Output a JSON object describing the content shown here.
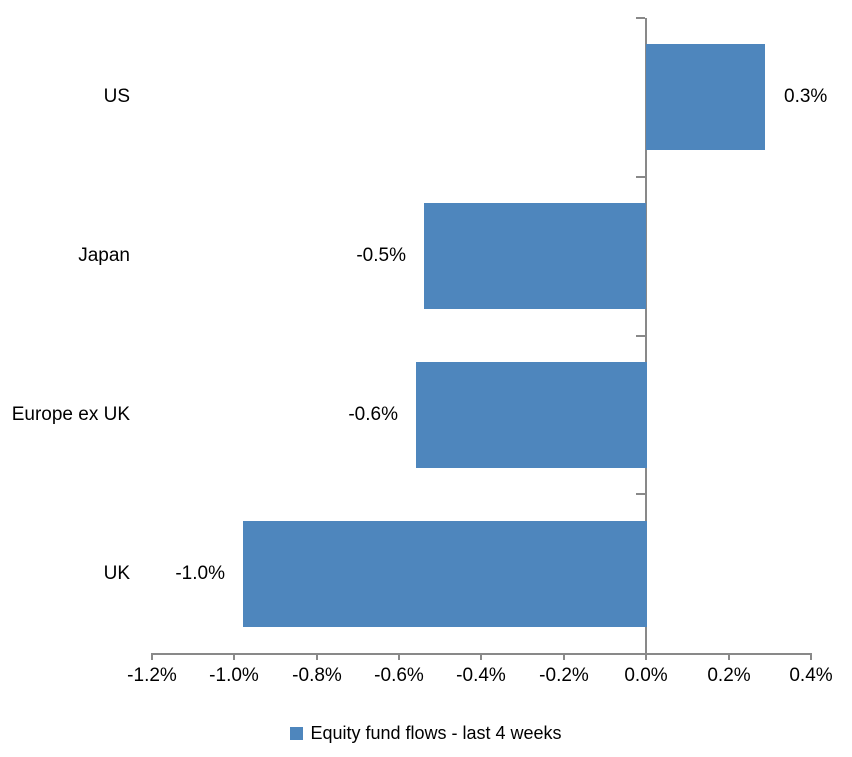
{
  "chart_data": {
    "type": "bar",
    "orientation": "horizontal",
    "categories": [
      "US",
      "Japan",
      "Europe ex UK",
      "UK"
    ],
    "values": [
      0.3,
      -0.5,
      -0.6,
      -1.0
    ],
    "values_plotted_estimate": [
      0.29,
      -0.54,
      -0.56,
      -0.98
    ],
    "value_labels": [
      "0.3%",
      "-0.5%",
      "-0.6%",
      "-1.0%"
    ],
    "x_ticks": [
      -1.2,
      -1.0,
      -0.8,
      -0.6,
      -0.4,
      -0.2,
      0.0,
      0.2,
      0.4
    ],
    "x_tick_labels": [
      "-1.2%",
      "-1.0%",
      "-0.8%",
      "-0.6%",
      "-0.4%",
      "-0.2%",
      "0.0%",
      "0.2%",
      "0.4%"
    ],
    "xlim": [
      -1.2,
      0.4
    ],
    "title": "",
    "xlabel": "",
    "ylabel": "",
    "grid": false,
    "legend": [
      "Equity fund flows - last 4 weeks"
    ],
    "legend_position": "bottom-center",
    "bar_color": "#4E86BD",
    "axis_color": "#898989",
    "text_color": "#000000",
    "background_color": "#FFFFFF"
  }
}
